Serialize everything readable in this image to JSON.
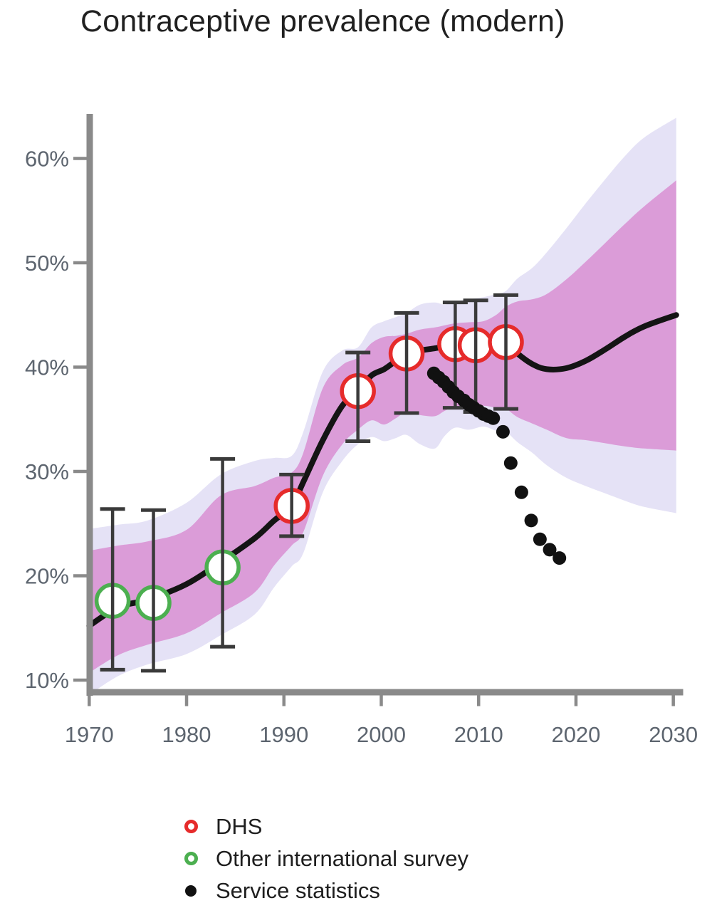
{
  "chart_data": {
    "type": "line",
    "title": "Contraceptive prevalence (modern)",
    "grid": false,
    "legend_position": "bottom",
    "x_axis": {
      "ticks": [
        1970,
        1980,
        1990,
        2000,
        2010,
        2020,
        2030
      ],
      "tick_labels": [
        "1970",
        "1980",
        "1990",
        "2000",
        "2010",
        "2020",
        "2030"
      ],
      "range": [
        1969.7,
        2031
      ]
    },
    "y_axis": {
      "tick_values": [
        10,
        20,
        30,
        40,
        50,
        60
      ],
      "tick_labels": [
        "10%",
        "20%",
        "30%",
        "40%",
        "50%",
        "60%"
      ],
      "range": [
        9,
        65
      ],
      "unit": "%"
    },
    "curve": {
      "years": [
        1970,
        1973,
        1976,
        1980,
        1983.5,
        1987,
        1989,
        1990.8,
        1992,
        1994,
        1996,
        1997.6,
        1999,
        2000.3,
        2001.5,
        2002.6,
        2004,
        2005.5,
        2006.5,
        2007.6,
        2009,
        2010.5,
        2011.8,
        2012.8,
        2014,
        2015.5,
        2017,
        2019,
        2021,
        2023,
        2025,
        2027,
        2030.3
      ],
      "median": [
        15.2,
        17.0,
        17.7,
        19.2,
        21.3,
        23.6,
        25.3,
        26.7,
        29.0,
        33.0,
        36.3,
        37.7,
        39.2,
        39.8,
        40.6,
        41.3,
        41.6,
        41.8,
        42.0,
        42.2,
        42.1,
        42.2,
        42.3,
        42.4,
        41.3,
        40.3,
        39.8,
        39.9,
        40.6,
        41.7,
        42.9,
        43.9,
        45.0
      ],
      "inner_band_high": [
        22.4,
        22.9,
        23.3,
        24.4,
        27.7,
        28.6,
        29.4,
        29.9,
        31.8,
        38.0,
        40.2,
        40.9,
        42.3,
        42.9,
        43.0,
        43.2,
        43.6,
        43.8,
        44.0,
        44.2,
        44.3,
        44.4,
        45.0,
        45.8,
        46.3,
        46.5,
        47.0,
        48.4,
        50.1,
        51.9,
        53.7,
        55.4,
        57.9
      ],
      "inner_band_low": [
        10.7,
        12.4,
        13.4,
        14.5,
        16.4,
        18.4,
        21.0,
        22.9,
        24.2,
        29.6,
        32.6,
        34.0,
        34.9,
        34.5,
        35.1,
        35.7,
        35.4,
        35.3,
        35.8,
        36.2,
        36.1,
        36.3,
        36.1,
        36.0,
        35.2,
        34.6,
        34.0,
        33.2,
        33.0,
        32.7,
        32.4,
        32.2,
        32.0
      ],
      "outer_band_high": [
        24.5,
        24.9,
        25.3,
        27.0,
        29.7,
        31.0,
        31.3,
        31.5,
        33.8,
        39.6,
        41.6,
        41.9,
        43.8,
        44.4,
        44.8,
        45.2,
        46.0,
        46.2,
        46.0,
        46.3,
        46.5,
        46.7,
        47.0,
        47.3,
        48.5,
        49.5,
        51.0,
        53.3,
        55.7,
        58.0,
        60.2,
        62.0,
        63.9
      ],
      "outer_band_low": [
        8.6,
        10.4,
        11.5,
        12.5,
        14.3,
        16.3,
        18.9,
        20.9,
        22.2,
        28.0,
        31.0,
        32.6,
        33.3,
        32.9,
        33.2,
        33.5,
        32.6,
        32.2,
        33.4,
        34.2,
        34.0,
        34.3,
        33.9,
        33.8,
        32.8,
        31.8,
        30.6,
        29.4,
        28.6,
        27.9,
        27.2,
        26.6,
        26.0
      ]
    },
    "dhs_surveys": [
      {
        "year": 1990.8,
        "value": 26.7,
        "ci_low": 23.8,
        "ci_high": 29.7
      },
      {
        "year": 1997.6,
        "value": 37.7,
        "ci_low": 32.9,
        "ci_high": 41.4
      },
      {
        "year": 2002.6,
        "value": 41.3,
        "ci_low": 35.6,
        "ci_high": 45.2
      },
      {
        "year": 2007.6,
        "value": 42.2,
        "ci_low": 36.1,
        "ci_high": 46.2
      },
      {
        "year": 2009.7,
        "value": 42.1,
        "ci_low": 35.7,
        "ci_high": 46.4
      },
      {
        "year": 2012.8,
        "value": 42.4,
        "ci_low": 36.0,
        "ci_high": 46.9
      }
    ],
    "other_surveys": [
      {
        "year": 1972.4,
        "value": 17.6,
        "ci_low": 11.0,
        "ci_high": 26.4
      },
      {
        "year": 1976.6,
        "value": 17.4,
        "ci_low": 10.9,
        "ci_high": 26.3
      },
      {
        "year": 1983.7,
        "value": 20.8,
        "ci_low": 13.2,
        "ci_high": 31.2
      }
    ],
    "service_statistics": [
      {
        "year": 2005.4,
        "value": 39.4
      },
      {
        "year": 2005.9,
        "value": 39.0
      },
      {
        "year": 2006.4,
        "value": 38.6
      },
      {
        "year": 2006.9,
        "value": 38.1
      },
      {
        "year": 2007.4,
        "value": 37.6
      },
      {
        "year": 2007.9,
        "value": 37.2
      },
      {
        "year": 2008.5,
        "value": 36.8
      },
      {
        "year": 2009.0,
        "value": 36.4
      },
      {
        "year": 2009.5,
        "value": 36.1
      },
      {
        "year": 2010.0,
        "value": 35.8
      },
      {
        "year": 2010.5,
        "value": 35.5
      },
      {
        "year": 2011.0,
        "value": 35.3
      },
      {
        "year": 2011.5,
        "value": 35.1
      },
      {
        "year": 2012.5,
        "value": 33.8
      },
      {
        "year": 2013.3,
        "value": 30.8
      },
      {
        "year": 2014.4,
        "value": 28.0
      },
      {
        "year": 2015.4,
        "value": 25.3
      },
      {
        "year": 2016.3,
        "value": 23.5
      },
      {
        "year": 2017.3,
        "value": 22.5
      },
      {
        "year": 2018.3,
        "value": 21.7
      }
    ],
    "legend": {
      "items": [
        {
          "label": "DHS",
          "marker": "open-circle",
          "color": "#E62B2B"
        },
        {
          "label": "Other international survey",
          "marker": "open-circle",
          "color": "#4CAF50"
        },
        {
          "label": "Service statistics",
          "marker": "dot",
          "color": "#111111"
        }
      ]
    },
    "colors": {
      "fit_line": "#141414",
      "inner_band": "#DB9CD8",
      "outer_band": "#E5E2F6",
      "dhs": "#E62B2B",
      "other_survey": "#4CAF50",
      "service_dot": "#111111",
      "axis": "#8A8A8A",
      "tick_label": "#5D656F",
      "error_bar": "#3A3A3A"
    }
  }
}
